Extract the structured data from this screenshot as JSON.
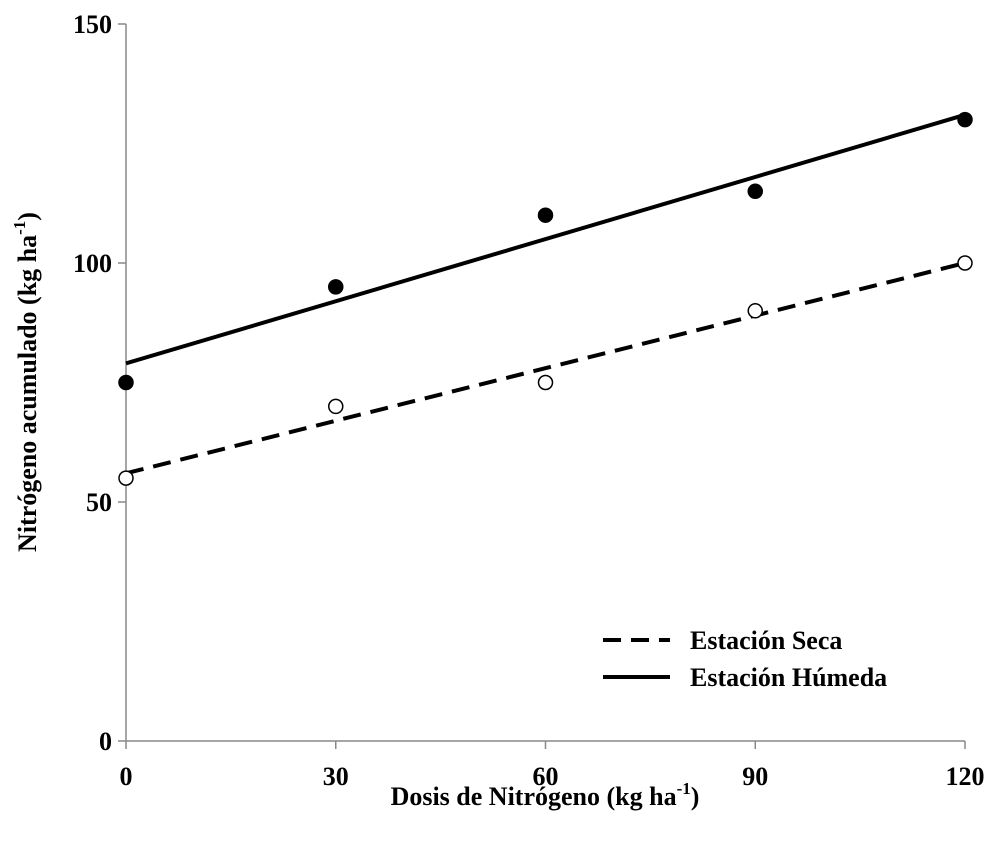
{
  "chart_data": {
    "type": "scatter",
    "xlabel": "Dosis de Nitrógeno (kg ha",
    "xlabel_sup": "-1",
    "xlabel_end": ")",
    "ylabel": "Nitrógeno acumulado (kg ha",
    "ylabel_sup": "-1",
    "ylabel_end": ")",
    "xlim": [
      0,
      120
    ],
    "ylim": [
      0,
      150
    ],
    "xticks": [
      "0",
      "30",
      "60",
      "90",
      "120"
    ],
    "yticks": [
      "0",
      "50",
      "100",
      "150"
    ],
    "legend_position": "bottom-right",
    "series": [
      {
        "name": "Estación Seca",
        "marker": "open-circle",
        "line_style": "dashed",
        "x": [
          0,
          30,
          60,
          90,
          120
        ],
        "y": [
          55,
          70,
          75,
          90,
          100
        ],
        "trend": [
          56,
          100
        ]
      },
      {
        "name": "Estación Húmeda",
        "marker": "filled-circle",
        "line_style": "solid",
        "x": [
          0,
          30,
          60,
          90,
          120
        ],
        "y": [
          75,
          95,
          110,
          115,
          130
        ],
        "trend": [
          79,
          131
        ]
      }
    ]
  }
}
